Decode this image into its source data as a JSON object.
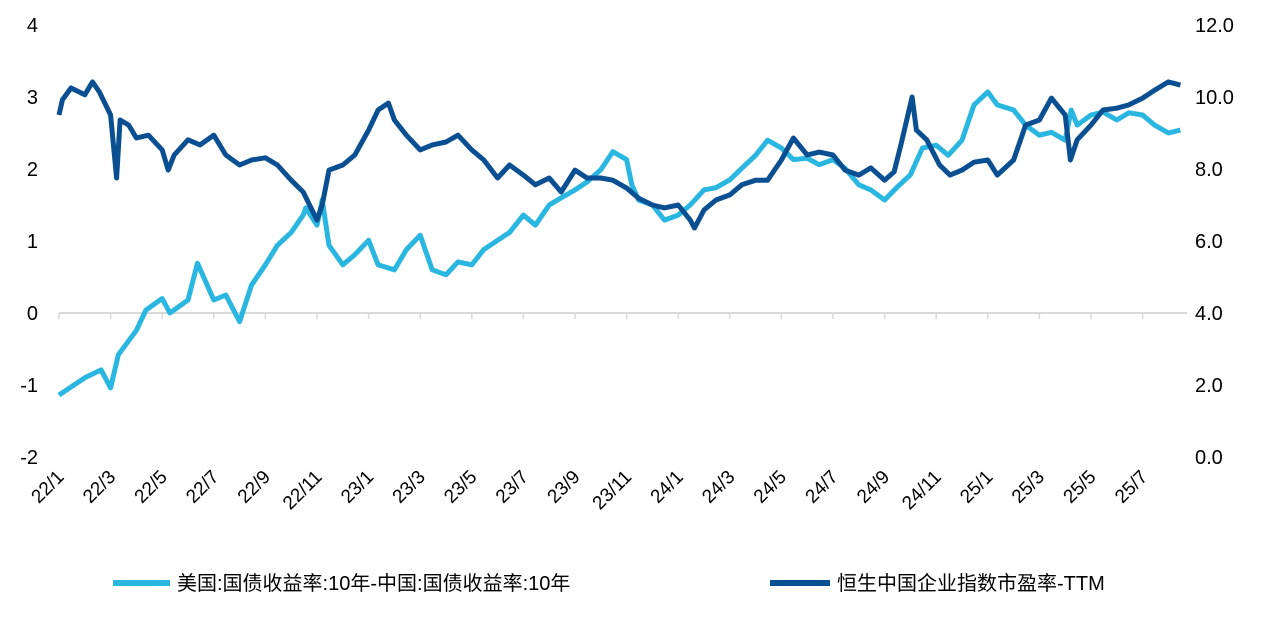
{
  "chart_data": {
    "type": "line",
    "title": "",
    "x_ticks": [
      "22/1",
      "22/3",
      "22/5",
      "22/7",
      "22/9",
      "22/11",
      "23/1",
      "23/3",
      "23/5",
      "23/7",
      "23/9",
      "23/11",
      "24/1",
      "24/3",
      "24/5",
      "24/7",
      "24/9",
      "24/11",
      "25/1",
      "25/3",
      "25/5",
      "25/7"
    ],
    "y_left": {
      "range": [
        -2,
        4
      ],
      "ticks": [
        "4",
        "3",
        "2",
        "1",
        "0",
        "-1",
        "-2"
      ]
    },
    "y_right": {
      "range": [
        0,
        12
      ],
      "ticks": [
        "12.0",
        "10.0",
        "8.0",
        "6.0",
        "4.0",
        "2.0",
        "0.0"
      ]
    },
    "grid": false,
    "legend_position": "bottom",
    "series": [
      {
        "name": "美国:国债收益率:10年-中国:国债收益率:10年",
        "axis": "left",
        "color": "#29B6E1",
        "points": [
          [
            "2022-01-01",
            -1.14
          ],
          [
            "2022-02-01",
            -0.9
          ],
          [
            "2022-02-20",
            -0.79
          ],
          [
            "2022-03-01",
            -1.04
          ],
          [
            "2022-03-10",
            -0.58
          ],
          [
            "2022-04-01",
            -0.24
          ],
          [
            "2022-04-12",
            0.04
          ],
          [
            "2022-05-01",
            0.2
          ],
          [
            "2022-05-10",
            0.0
          ],
          [
            "2022-06-01",
            0.18
          ],
          [
            "2022-06-12",
            0.69
          ],
          [
            "2022-07-01",
            0.18
          ],
          [
            "2022-07-15",
            0.25
          ],
          [
            "2022-08-01",
            -0.12
          ],
          [
            "2022-08-15",
            0.39
          ],
          [
            "2022-09-01",
            0.67
          ],
          [
            "2022-09-15",
            0.94
          ],
          [
            "2022-10-01",
            1.12
          ],
          [
            "2022-10-15",
            1.36
          ],
          [
            "2022-10-18",
            1.46
          ],
          [
            "2022-11-01",
            1.22
          ],
          [
            "2022-11-07",
            1.57
          ],
          [
            "2022-11-15",
            0.94
          ],
          [
            "2022-12-01",
            0.67
          ],
          [
            "2022-12-15",
            0.81
          ],
          [
            "2023-01-01",
            1.01
          ],
          [
            "2023-01-12",
            0.67
          ],
          [
            "2023-02-01",
            0.6
          ],
          [
            "2023-02-15",
            0.88
          ],
          [
            "2023-03-01",
            1.08
          ],
          [
            "2023-03-15",
            0.6
          ],
          [
            "2023-04-01",
            0.53
          ],
          [
            "2023-04-15",
            0.71
          ],
          [
            "2023-05-01",
            0.67
          ],
          [
            "2023-05-15",
            0.88
          ],
          [
            "2023-06-01",
            1.01
          ],
          [
            "2023-06-15",
            1.12
          ],
          [
            "2023-07-01",
            1.36
          ],
          [
            "2023-07-15",
            1.22
          ],
          [
            "2023-08-01",
            1.5
          ],
          [
            "2023-08-15",
            1.6
          ],
          [
            "2023-09-01",
            1.71
          ],
          [
            "2023-09-15",
            1.82
          ],
          [
            "2023-10-01",
            1.99
          ],
          [
            "2023-10-15",
            2.24
          ],
          [
            "2023-11-01",
            2.13
          ],
          [
            "2023-11-07",
            1.78
          ],
          [
            "2023-11-15",
            1.57
          ],
          [
            "2023-12-01",
            1.5
          ],
          [
            "2023-12-15",
            1.29
          ],
          [
            "2024-01-01",
            1.36
          ],
          [
            "2024-01-15",
            1.5
          ],
          [
            "2024-02-01",
            1.71
          ],
          [
            "2024-02-15",
            1.74
          ],
          [
            "2024-03-01",
            1.85
          ],
          [
            "2024-03-15",
            2.01
          ],
          [
            "2024-04-01",
            2.19
          ],
          [
            "2024-04-15",
            2.4
          ],
          [
            "2024-05-01",
            2.29
          ],
          [
            "2024-05-15",
            2.13
          ],
          [
            "2024-06-01",
            2.15
          ],
          [
            "2024-06-15",
            2.06
          ],
          [
            "2024-07-01",
            2.13
          ],
          [
            "2024-07-15",
            2.01
          ],
          [
            "2024-08-01",
            1.78
          ],
          [
            "2024-08-15",
            1.71
          ],
          [
            "2024-09-01",
            1.57
          ],
          [
            "2024-09-15",
            1.74
          ],
          [
            "2024-10-01",
            1.92
          ],
          [
            "2024-10-15",
            2.29
          ],
          [
            "2024-11-01",
            2.33
          ],
          [
            "2024-11-15",
            2.19
          ],
          [
            "2024-12-01",
            2.4
          ],
          [
            "2024-12-15",
            2.89
          ],
          [
            "2025-01-01",
            3.07
          ],
          [
            "2025-01-12",
            2.89
          ],
          [
            "2025-02-01",
            2.82
          ],
          [
            "2025-02-15",
            2.61
          ],
          [
            "2025-03-01",
            2.47
          ],
          [
            "2025-03-15",
            2.51
          ],
          [
            "2025-04-01",
            2.4
          ],
          [
            "2025-04-08",
            2.82
          ],
          [
            "2025-04-15",
            2.61
          ],
          [
            "2025-05-01",
            2.75
          ],
          [
            "2025-05-15",
            2.79
          ],
          [
            "2025-06-01",
            2.68
          ],
          [
            "2025-06-15",
            2.78
          ],
          [
            "2025-07-01",
            2.75
          ],
          [
            "2025-07-15",
            2.61
          ],
          [
            "2025-08-01",
            2.5
          ],
          [
            "2025-08-15",
            2.54
          ]
        ]
      },
      {
        "name": "恒生中国企业指数市盈率-TTM",
        "axis": "right",
        "color": "#0B4F93",
        "points": [
          [
            "2022-01-01",
            9.5
          ],
          [
            "2022-01-05",
            9.92
          ],
          [
            "2022-01-15",
            10.25
          ],
          [
            "2022-02-01",
            10.06
          ],
          [
            "2022-02-10",
            10.42
          ],
          [
            "2022-02-18",
            10.14
          ],
          [
            "2022-03-01",
            9.5
          ],
          [
            "2022-03-08",
            7.75
          ],
          [
            "2022-03-12",
            9.36
          ],
          [
            "2022-03-22",
            9.22
          ],
          [
            "2022-04-01",
            8.86
          ],
          [
            "2022-04-15",
            8.94
          ],
          [
            "2022-05-01",
            8.53
          ],
          [
            "2022-05-08",
            7.97
          ],
          [
            "2022-05-15",
            8.39
          ],
          [
            "2022-06-01",
            8.81
          ],
          [
            "2022-06-15",
            8.67
          ],
          [
            "2022-07-01",
            8.94
          ],
          [
            "2022-07-15",
            8.39
          ],
          [
            "2022-08-01",
            8.11
          ],
          [
            "2022-08-15",
            8.25
          ],
          [
            "2022-09-01",
            8.31
          ],
          [
            "2022-09-15",
            8.11
          ],
          [
            "2022-10-01",
            7.69
          ],
          [
            "2022-10-15",
            7.36
          ],
          [
            "2022-11-01",
            6.58
          ],
          [
            "2022-11-07",
            7.0
          ],
          [
            "2022-11-15",
            7.97
          ],
          [
            "2022-12-01",
            8.11
          ],
          [
            "2022-12-15",
            8.39
          ],
          [
            "2023-01-01",
            9.08
          ],
          [
            "2023-01-12",
            9.64
          ],
          [
            "2023-01-24",
            9.83
          ],
          [
            "2023-02-01",
            9.36
          ],
          [
            "2023-02-15",
            8.94
          ],
          [
            "2023-03-01",
            8.53
          ],
          [
            "2023-03-15",
            8.67
          ],
          [
            "2023-04-01",
            8.75
          ],
          [
            "2023-04-15",
            8.94
          ],
          [
            "2023-05-01",
            8.53
          ],
          [
            "2023-05-15",
            8.25
          ],
          [
            "2023-06-01",
            7.75
          ],
          [
            "2023-06-15",
            8.11
          ],
          [
            "2023-07-01",
            7.83
          ],
          [
            "2023-07-15",
            7.56
          ],
          [
            "2023-08-01",
            7.75
          ],
          [
            "2023-08-15",
            7.36
          ],
          [
            "2023-09-01",
            7.97
          ],
          [
            "2023-09-15",
            7.75
          ],
          [
            "2023-10-01",
            7.75
          ],
          [
            "2023-10-15",
            7.69
          ],
          [
            "2023-11-01",
            7.47
          ],
          [
            "2023-11-15",
            7.19
          ],
          [
            "2023-12-01",
            7.0
          ],
          [
            "2023-12-15",
            6.92
          ],
          [
            "2024-01-01",
            7.0
          ],
          [
            "2024-01-15",
            6.58
          ],
          [
            "2024-01-20",
            6.36
          ],
          [
            "2024-02-01",
            6.86
          ],
          [
            "2024-02-15",
            7.14
          ],
          [
            "2024-03-01",
            7.28
          ],
          [
            "2024-03-15",
            7.56
          ],
          [
            "2024-04-01",
            7.69
          ],
          [
            "2024-04-15",
            7.69
          ],
          [
            "2024-05-01",
            8.25
          ],
          [
            "2024-05-15",
            8.86
          ],
          [
            "2024-06-01",
            8.39
          ],
          [
            "2024-06-15",
            8.47
          ],
          [
            "2024-07-01",
            8.39
          ],
          [
            "2024-07-15",
            7.97
          ],
          [
            "2024-08-01",
            7.83
          ],
          [
            "2024-08-15",
            8.03
          ],
          [
            "2024-09-01",
            7.69
          ],
          [
            "2024-09-12",
            7.92
          ],
          [
            "2024-09-20",
            8.67
          ],
          [
            "2024-10-03",
            10.0
          ],
          [
            "2024-10-08",
            9.08
          ],
          [
            "2024-10-20",
            8.81
          ],
          [
            "2024-11-05",
            8.11
          ],
          [
            "2024-11-17",
            7.83
          ],
          [
            "2024-12-01",
            7.97
          ],
          [
            "2024-12-15",
            8.19
          ],
          [
            "2025-01-01",
            8.25
          ],
          [
            "2025-01-12",
            7.83
          ],
          [
            "2025-02-01",
            8.25
          ],
          [
            "2025-02-15",
            9.22
          ],
          [
            "2025-03-01",
            9.36
          ],
          [
            "2025-03-15",
            9.97
          ],
          [
            "2025-04-01",
            9.5
          ],
          [
            "2025-04-07",
            8.25
          ],
          [
            "2025-04-15",
            8.81
          ],
          [
            "2025-05-01",
            9.22
          ],
          [
            "2025-05-15",
            9.64
          ],
          [
            "2025-06-01",
            9.69
          ],
          [
            "2025-06-15",
            9.78
          ],
          [
            "2025-07-01",
            9.97
          ],
          [
            "2025-07-15",
            10.19
          ],
          [
            "2025-08-01",
            10.42
          ],
          [
            "2025-08-15",
            10.33
          ]
        ]
      }
    ]
  }
}
